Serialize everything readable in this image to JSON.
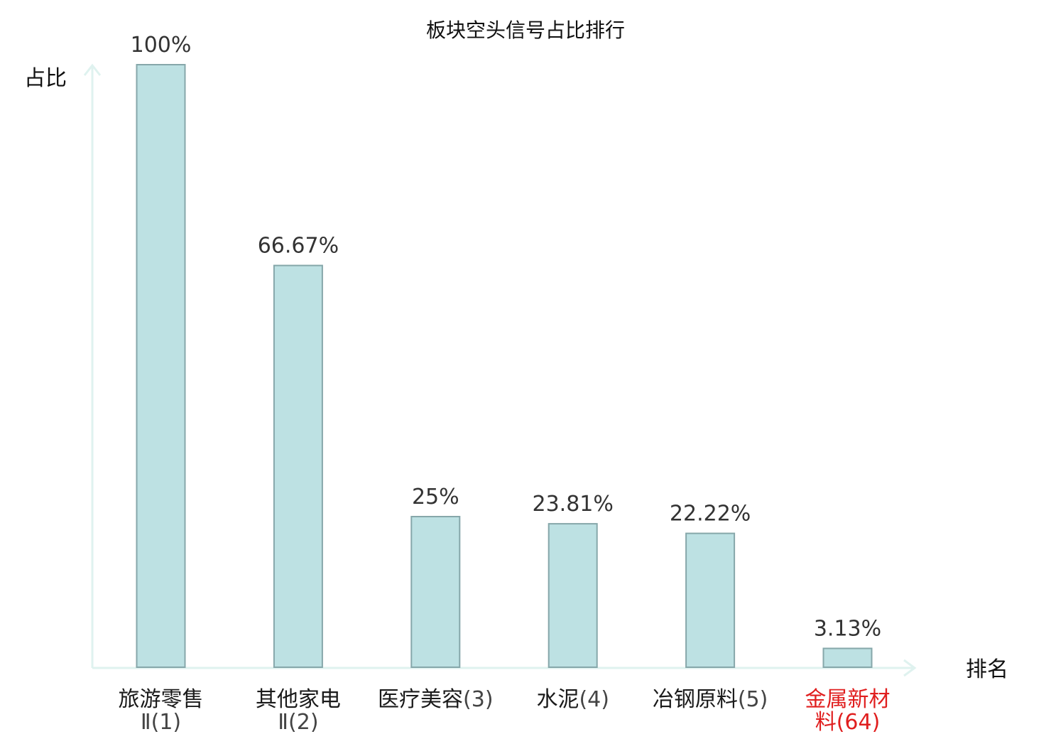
{
  "chart_data": {
    "type": "bar",
    "title": "板块空头信号占比排行",
    "ylabel": "占比",
    "xlabel": "排名",
    "ylim": [
      0,
      100
    ],
    "grid": false,
    "categories": [
      {
        "name": "旅游零售",
        "rank": "Ⅱ(1)",
        "highlight": false
      },
      {
        "name": "其他家电",
        "rank": "Ⅱ(2)",
        "highlight": false
      },
      {
        "name": "医疗美容",
        "rank": "(3)",
        "highlight": false
      },
      {
        "name": "水泥",
        "rank": "(4)",
        "highlight": false
      },
      {
        "name": "冶钢原料",
        "rank": "(5)",
        "highlight": false
      },
      {
        "name": "金属新材",
        "rank": "料(64)",
        "highlight": true
      }
    ],
    "values": [
      100,
      66.67,
      25,
      23.81,
      22.22,
      3.13
    ],
    "value_labels": [
      "100%",
      "66.67%",
      "25%",
      "23.81%",
      "22.22%",
      "3.13%"
    ],
    "colors": {
      "bar_fill": "#bde1e3",
      "bar_stroke": "#86a7aa",
      "axis": "#dff2ef",
      "highlight_text": "#e01e1e"
    }
  }
}
